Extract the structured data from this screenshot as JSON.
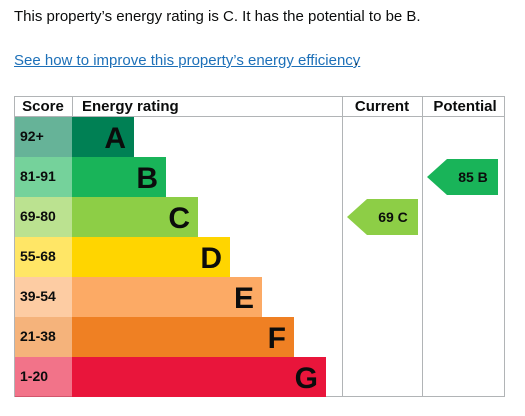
{
  "intro_text": "This property’s energy rating is C. It has the potential to be B.",
  "improve_link": "See how to improve this property’s energy efficiency",
  "link_suffix": ".",
  "chart_data": {
    "type": "table",
    "columns": {
      "score": "Score",
      "rating": "Energy rating",
      "current": "Current",
      "potential": "Potential"
    },
    "bands": [
      {
        "score": "92+",
        "letter": "A",
        "color": "#008054"
      },
      {
        "score": "81-91",
        "letter": "B",
        "color": "#19b459"
      },
      {
        "score": "69-80",
        "letter": "C",
        "color": "#8dce46"
      },
      {
        "score": "55-68",
        "letter": "D",
        "color": "#ffd500"
      },
      {
        "score": "39-54",
        "letter": "E",
        "color": "#fcaa65"
      },
      {
        "score": "21-38",
        "letter": "F",
        "color": "#ef8023"
      },
      {
        "score": "1-20",
        "letter": "G",
        "color": "#e9153b"
      }
    ],
    "current": {
      "value": 69,
      "band": "C",
      "label": "69 C",
      "color": "#8dce46"
    },
    "potential": {
      "value": 85,
      "band": "B",
      "label": "85 B",
      "color": "#19b459"
    }
  }
}
